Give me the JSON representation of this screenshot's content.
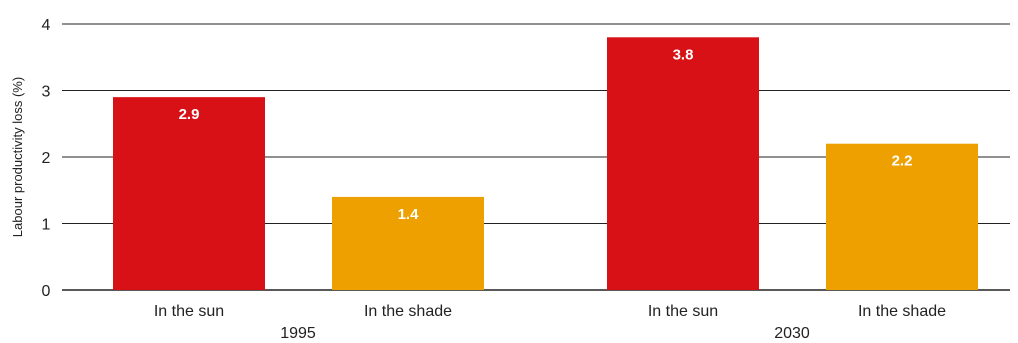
{
  "chart_data": {
    "type": "bar",
    "title": "",
    "ylabel": "Labour productivity loss (%)",
    "xlabel": "",
    "ylim": [
      0,
      4
    ],
    "yticks": [
      0,
      1,
      2,
      3,
      4
    ],
    "grid": "horizontal",
    "groups": [
      {
        "label": "1995",
        "bars": [
          {
            "category": "In the sun",
            "value": 2.9,
            "value_label": "2.9",
            "color": "#d71116"
          },
          {
            "category": "In the shade",
            "value": 1.4,
            "value_label": "1.4",
            "color": "#eea000"
          }
        ]
      },
      {
        "label": "2030",
        "bars": [
          {
            "category": "In the sun",
            "value": 3.8,
            "value_label": "3.8",
            "color": "#d71116"
          },
          {
            "category": "In the shade",
            "value": 2.2,
            "value_label": "2.2",
            "color": "#eea000"
          }
        ]
      }
    ]
  },
  "colors": {
    "sun": "#d71116",
    "shade": "#eea000",
    "gridline": "#222222",
    "text": "#222222"
  }
}
